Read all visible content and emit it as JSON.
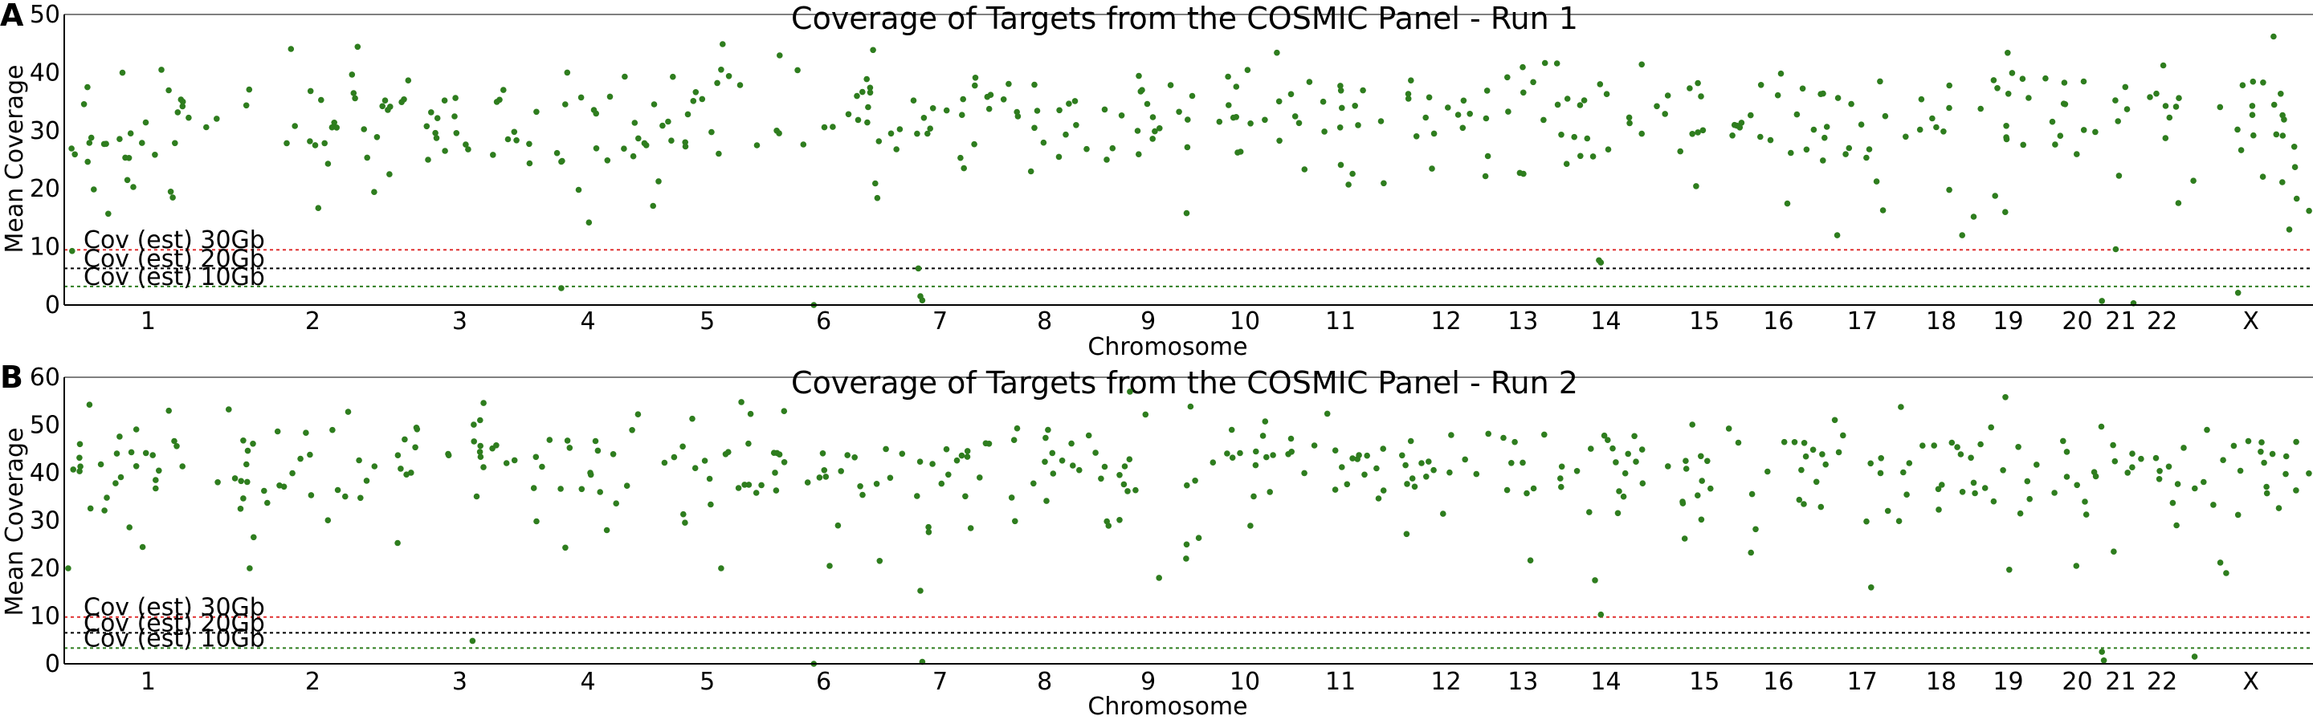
{
  "chart_data": [
    {
      "type": "scatter",
      "panel_label": "A",
      "title": "Coverage of Targets from the COSMIC Panel - Run 1",
      "xlabel": "Chromosome",
      "ylabel": "Mean Coverage",
      "ylim": [
        0,
        50
      ],
      "yticks": [
        0,
        10,
        20,
        30,
        40,
        50
      ],
      "grid": false,
      "marker_color": "#2e7d1e",
      "categories": [
        "1",
        "2",
        "3",
        "4",
        "5",
        "6",
        "7",
        "8",
        "9",
        "10",
        "11",
        "12",
        "13",
        "14",
        "15",
        "16",
        "17",
        "18",
        "19",
        "20",
        "21",
        "22",
        "X"
      ],
      "chrom_bounds": [
        [
          0,
          8.5
        ],
        [
          8.5,
          16.7
        ],
        [
          16.7,
          23.4
        ],
        [
          23.4,
          29.7
        ],
        [
          29.7,
          35.5
        ],
        [
          35.5,
          41.5
        ],
        [
          41.5,
          47.3
        ],
        [
          47.3,
          52.1
        ],
        [
          52.1,
          57.8
        ],
        [
          57.8,
          61.9
        ],
        [
          61.9,
          67.5
        ],
        [
          67.5,
          72.6
        ],
        [
          72.6,
          75.3
        ],
        [
          75.3,
          81.0
        ],
        [
          81.0,
          85.3
        ],
        [
          85.3,
          88.5
        ],
        [
          88.5,
          93.8
        ],
        [
          93.8,
          96.5
        ],
        [
          96.5,
          100.6
        ],
        [
          100.6,
          103.5
        ],
        [
          103.5,
          105.0
        ],
        [
          105.0,
          107.7
        ],
        [
          107.7,
          114.0
        ]
      ],
      "thresholds": [
        {
          "name": "Cov (est) 30Gb",
          "value": 9.5,
          "color": "#e03030"
        },
        {
          "name": "Cov (est) 20Gb",
          "value": 6.3,
          "color": "#000000"
        },
        {
          "name": "Cov (est) 10Gb",
          "value": 3.2,
          "color": "#2e7d1e"
        }
      ],
      "scatter_params": {
        "mean": 32.5,
        "sd": 5.0,
        "seed": 11,
        "per_unit": 3.4
      },
      "points": [
        {
          "x": 0.4,
          "y": 9.3
        },
        {
          "x": 3.2,
          "y": 21.5
        },
        {
          "x": 3.5,
          "y": 20.3
        },
        {
          "x": 5.4,
          "y": 19.5
        },
        {
          "x": 5.5,
          "y": 18.5
        },
        {
          "x": 25.5,
          "y": 40.0
        },
        {
          "x": 25.2,
          "y": 2.9
        },
        {
          "x": 26.6,
          "y": 14.2
        },
        {
          "x": 33.3,
          "y": 40.5
        },
        {
          "x": 38.0,
          "y": 0.0
        },
        {
          "x": 43.3,
          "y": 6.3
        },
        {
          "x": 43.4,
          "y": 1.5
        },
        {
          "x": 43.5,
          "y": 0.8
        },
        {
          "x": 56.9,
          "y": 15.8
        },
        {
          "x": 77.8,
          "y": 7.7
        },
        {
          "x": 77.9,
          "y": 7.3
        },
        {
          "x": 92.2,
          "y": 16.3
        },
        {
          "x": 96.8,
          "y": 15.2
        },
        {
          "x": 98.4,
          "y": 16.0
        },
        {
          "x": 103.3,
          "y": 0.7
        },
        {
          "x": 104.0,
          "y": 9.6
        },
        {
          "x": 104.9,
          "y": 0.3
        },
        {
          "x": 112.0,
          "y": 46.2
        },
        {
          "x": 113.8,
          "y": 16.2
        },
        {
          "x": 110.2,
          "y": 2.1
        },
        {
          "x": 112.8,
          "y": 13.0
        }
      ]
    },
    {
      "type": "scatter",
      "panel_label": "B",
      "title": "Coverage of Targets from the COSMIC Panel - Run 2",
      "xlabel": "Chromosome",
      "ylabel": "Mean Coverage",
      "ylim": [
        0,
        60
      ],
      "yticks": [
        0,
        10,
        20,
        30,
        40,
        50,
        60
      ],
      "grid": false,
      "marker_color": "#2e7d1e",
      "categories": [
        "1",
        "2",
        "3",
        "4",
        "5",
        "6",
        "7",
        "8",
        "9",
        "10",
        "11",
        "12",
        "13",
        "14",
        "15",
        "16",
        "17",
        "18",
        "19",
        "20",
        "21",
        "22",
        "X"
      ],
      "chrom_bounds": [
        [
          0,
          8.5
        ],
        [
          8.5,
          16.7
        ],
        [
          16.7,
          23.4
        ],
        [
          23.4,
          29.7
        ],
        [
          29.7,
          35.5
        ],
        [
          35.5,
          41.5
        ],
        [
          41.5,
          47.3
        ],
        [
          47.3,
          52.1
        ],
        [
          52.1,
          57.8
        ],
        [
          57.8,
          61.9
        ],
        [
          61.9,
          67.5
        ],
        [
          67.5,
          72.6
        ],
        [
          72.6,
          75.3
        ],
        [
          75.3,
          81.0
        ],
        [
          81.0,
          85.3
        ],
        [
          85.3,
          88.5
        ],
        [
          88.5,
          93.8
        ],
        [
          93.8,
          96.5
        ],
        [
          96.5,
          100.6
        ],
        [
          100.6,
          103.5
        ],
        [
          103.5,
          105.0
        ],
        [
          105.0,
          107.7
        ],
        [
          107.7,
          114.0
        ]
      ],
      "thresholds": [
        {
          "name": "Cov (est) 30Gb",
          "value": 9.8,
          "color": "#e03030"
        },
        {
          "name": "Cov (est) 20Gb",
          "value": 6.5,
          "color": "#000000"
        },
        {
          "name": "Cov (est) 10Gb",
          "value": 3.3,
          "color": "#2e7d1e"
        }
      ],
      "scatter_params": {
        "mean": 41.5,
        "sd": 5.2,
        "seed": 23,
        "per_unit": 3.4
      },
      "points": [
        {
          "x": 0.2,
          "y": 20.0
        },
        {
          "x": 5.3,
          "y": 53.0
        },
        {
          "x": 9.4,
          "y": 20.0
        },
        {
          "x": 9.6,
          "y": 26.5
        },
        {
          "x": 16.9,
          "y": 25.3
        },
        {
          "x": 20.7,
          "y": 4.8
        },
        {
          "x": 33.3,
          "y": 20.0
        },
        {
          "x": 38.0,
          "y": 0.0
        },
        {
          "x": 43.4,
          "y": 15.3
        },
        {
          "x": 43.5,
          "y": 0.4
        },
        {
          "x": 38.8,
          "y": 20.5
        },
        {
          "x": 55.5,
          "y": 18.0
        },
        {
          "x": 56.9,
          "y": 25.0
        },
        {
          "x": 77.6,
          "y": 17.5
        },
        {
          "x": 77.9,
          "y": 10.3
        },
        {
          "x": 91.6,
          "y": 16.0
        },
        {
          "x": 98.6,
          "y": 19.7
        },
        {
          "x": 102.0,
          "y": 20.5
        },
        {
          "x": 103.3,
          "y": 2.5
        },
        {
          "x": 103.4,
          "y": 0.7
        },
        {
          "x": 108.0,
          "y": 1.5
        },
        {
          "x": 109.3,
          "y": 21.2
        },
        {
          "x": 109.6,
          "y": 19.0
        },
        {
          "x": 103.9,
          "y": 23.5
        }
      ]
    }
  ]
}
